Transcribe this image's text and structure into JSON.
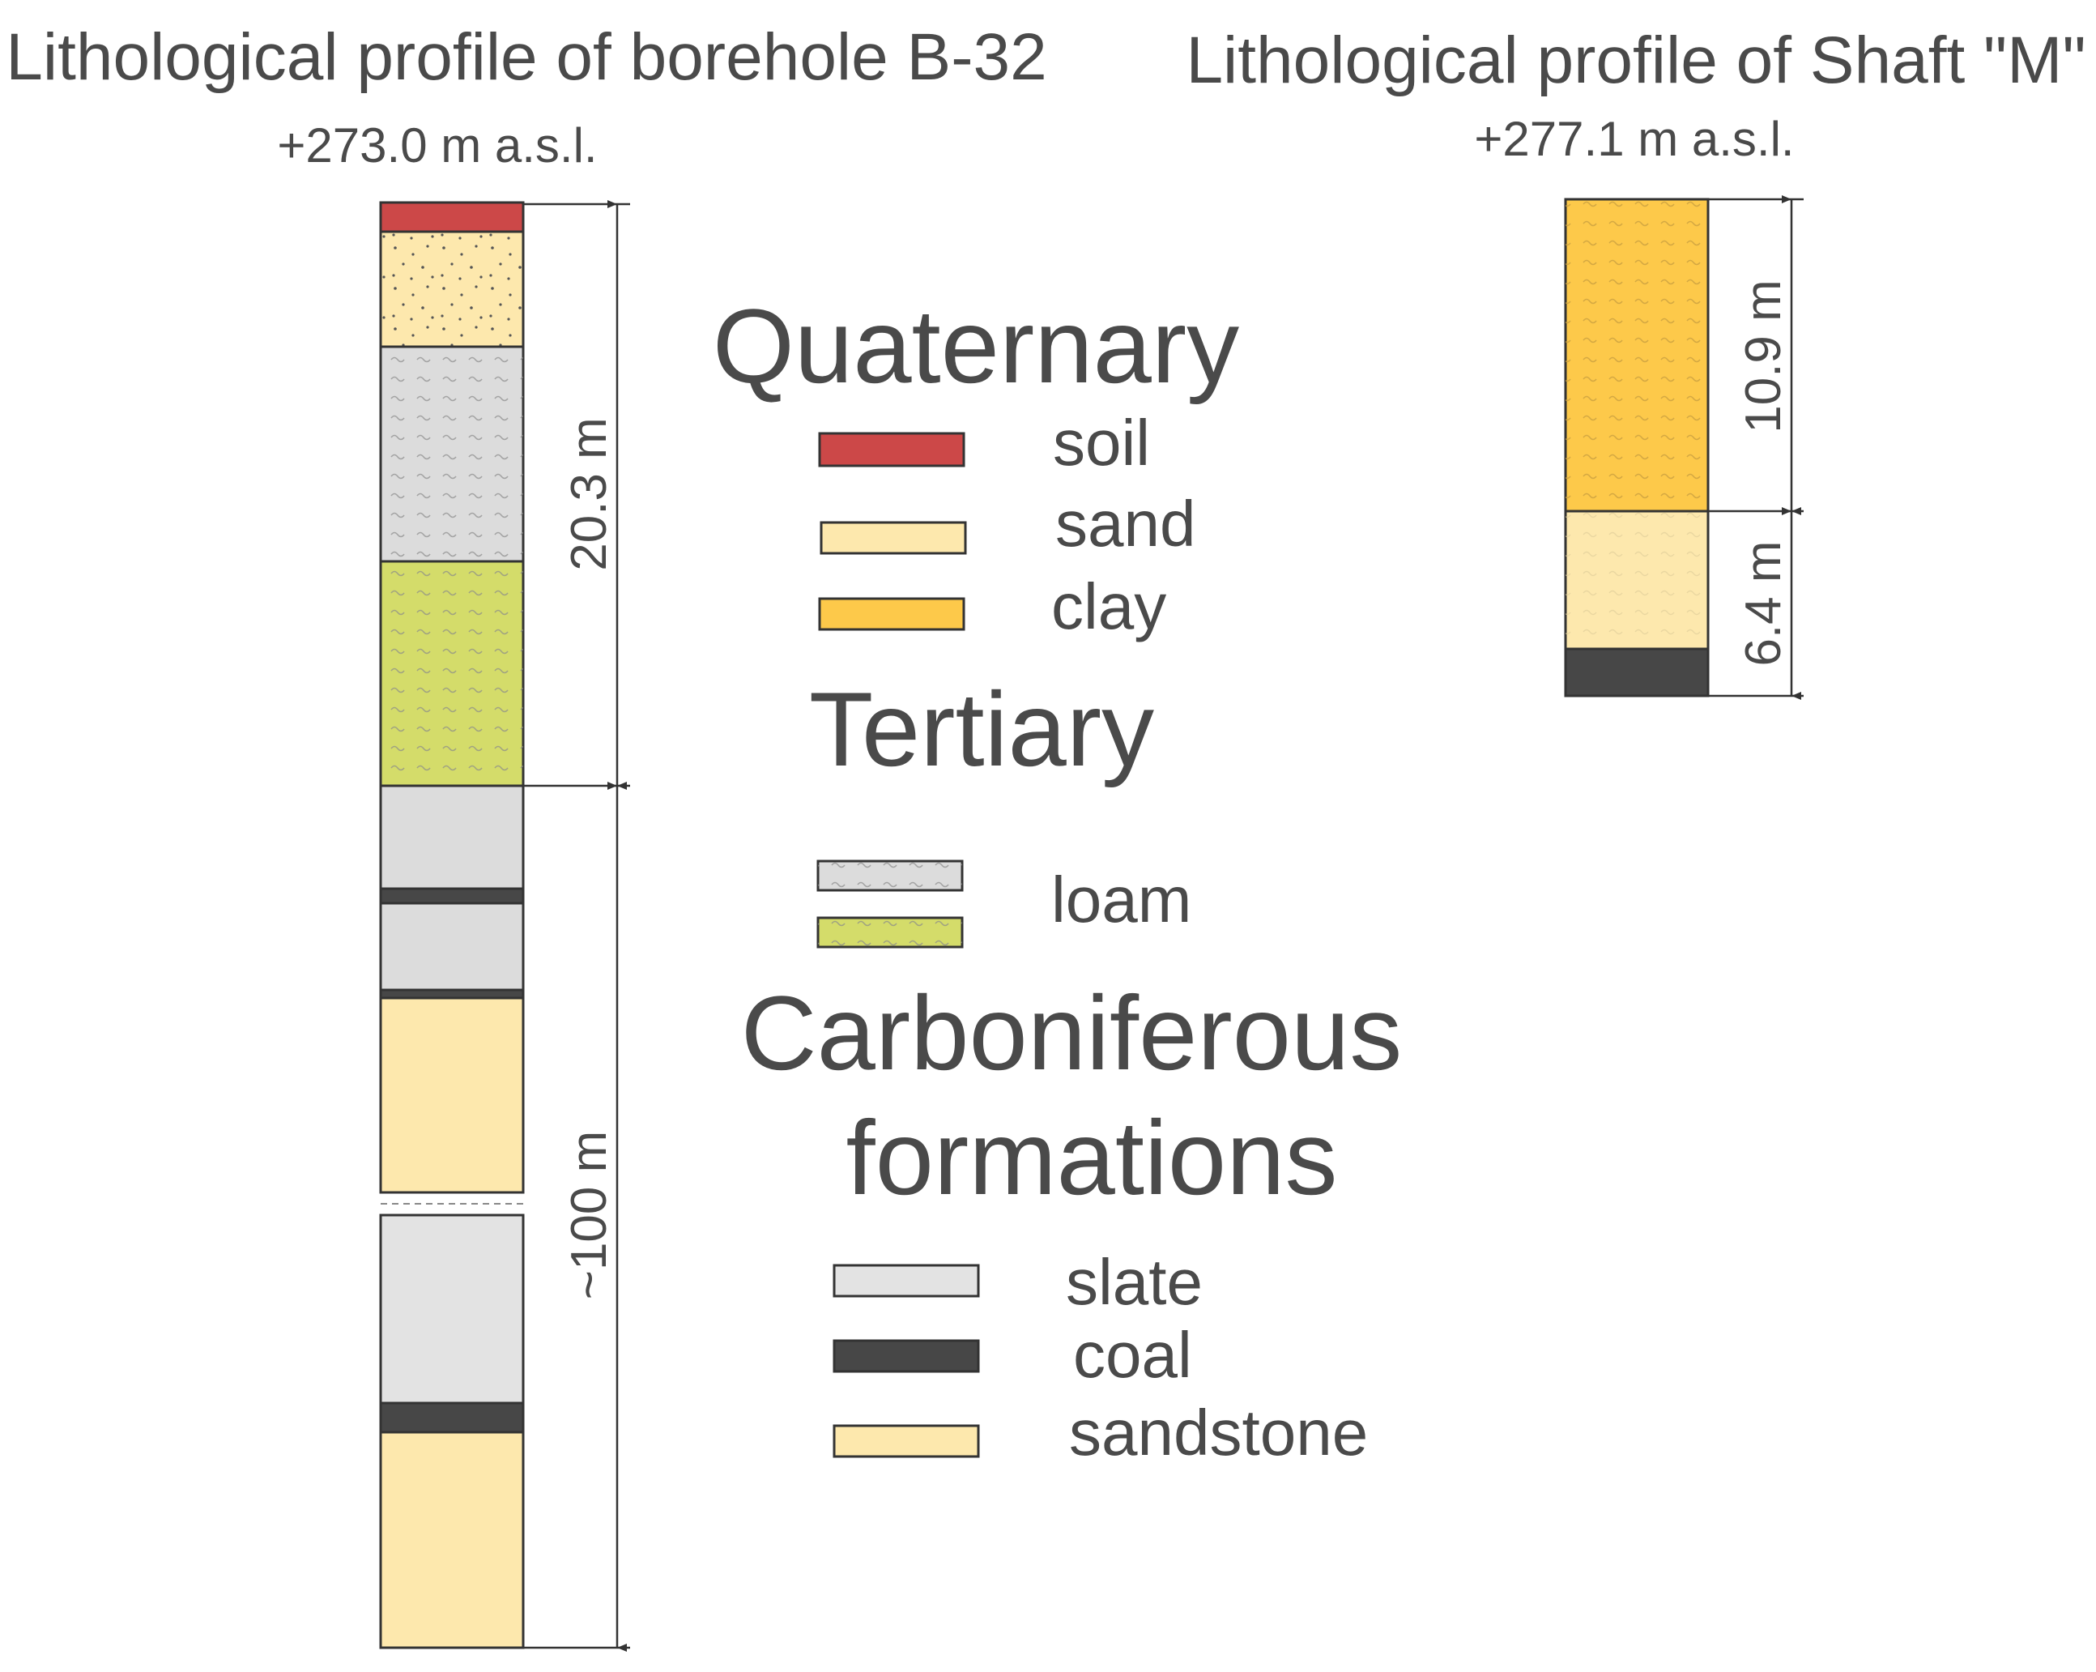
{
  "borehole": {
    "title": "Lithological profile of borehole B-32",
    "elevation": "+273.0 m a.s.l.",
    "dim_upper": "20.3 m",
    "dim_lower": "~100 m"
  },
  "shaft": {
    "title": "Lithological profile of Shaft \"M\"",
    "elevation": "+277.1 m a.s.l.",
    "dim_upper": "10.9 m",
    "dim_lower": "6.4 m"
  },
  "legend": {
    "quaternary": {
      "heading": "Quaternary",
      "items": [
        {
          "label": "soil",
          "color": "#cc4848"
        },
        {
          "label": "sand",
          "color": "#fde8ad"
        },
        {
          "label": "clay",
          "color": "#fdc94a"
        }
      ]
    },
    "tertiary": {
      "heading": "Tertiary",
      "item": {
        "label": "loam",
        "colors": [
          "#dcdcdc",
          "#d4dc6a"
        ]
      }
    },
    "carboniferous": {
      "heading_line1": "Carboniferous",
      "heading_line2": "formations",
      "items": [
        {
          "label": "slate",
          "color": "#e3e3e3"
        },
        {
          "label": "coal",
          "color": "#474747"
        },
        {
          "label": "sandstone",
          "color": "#fde8ad"
        }
      ]
    }
  },
  "colors": {
    "soil": "#cc4848",
    "sand": "#fde8ad",
    "clay": "#fdc94a",
    "loam_grey": "#dcdcdc",
    "loam_green": "#d4dc6a",
    "slate": "#e3e3e3",
    "coal": "#474747",
    "sandstone": "#fde8ad",
    "line": "#333333",
    "text": "#4a4a4a"
  }
}
